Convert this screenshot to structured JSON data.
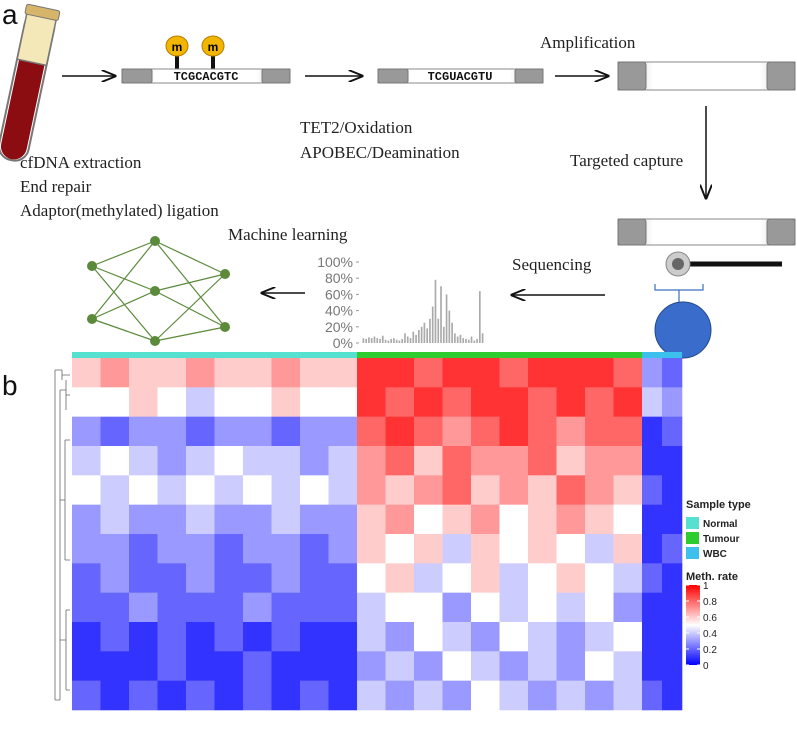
{
  "panel_a": {
    "label": "a",
    "sample_prep": [
      "cfDNA extraction",
      "End repair",
      "Adaptor(methylated) ligation"
    ],
    "methyl_marks": [
      "m",
      "m"
    ],
    "seq_before": "TCGCACGTC",
    "seq_after": "TCGUACGTU",
    "conversion": [
      "TET2/Oxidation",
      "APOBEC/Deamination"
    ],
    "amplification": "Amplification",
    "capture": "Targeted capture",
    "sequencing": "Sequencing",
    "machine_learning": "Machine learning"
  },
  "panel_b": {
    "label": "b"
  },
  "chart_data": [
    {
      "type": "bar",
      "color": "#aaaaaa",
      "values": [
        6,
        5,
        7,
        6,
        8,
        6,
        5,
        9,
        4,
        3,
        5,
        6,
        4,
        3,
        5,
        12,
        8,
        6,
        14,
        10,
        16,
        20,
        25,
        18,
        30,
        45,
        78,
        30,
        70,
        20,
        60,
        40,
        25,
        12,
        8,
        10,
        6,
        5,
        4,
        8,
        3,
        5,
        64,
        12
      ],
      "ylim": [
        0,
        100
      ],
      "yticks": [
        {
          "value": 0,
          "label": "0%"
        },
        {
          "value": 20,
          "label": "20%"
        },
        {
          "value": 40,
          "label": "40%"
        },
        {
          "value": 60,
          "label": "60%"
        },
        {
          "value": 80,
          "label": "80%"
        },
        {
          "value": 100,
          "label": "100%"
        }
      ]
    },
    {
      "type": "heatmap",
      "legend_title": "Sample type",
      "colorbar_title": "Meth. rate",
      "colormap": [
        "#0000ff",
        "#ffffff",
        "#ff0000"
      ],
      "zlim": [
        0,
        1
      ],
      "zticks": [
        0,
        0.2,
        0.4,
        0.6,
        0.8,
        1
      ],
      "series": [
        {
          "name": "Normal",
          "color": "#55e0d0",
          "values": [
            [
              0.6,
              0.7,
              0.6,
              0.6,
              0.7,
              0.6,
              0.6,
              0.7,
              0.6,
              0.6
            ],
            [
              0.5,
              0.5,
              0.6,
              0.5,
              0.4,
              0.5,
              0.5,
              0.6,
              0.5,
              0.5
            ],
            [
              0.3,
              0.2,
              0.3,
              0.3,
              0.2,
              0.3,
              0.3,
              0.2,
              0.3,
              0.3
            ],
            [
              0.4,
              0.5,
              0.4,
              0.3,
              0.4,
              0.5,
              0.4,
              0.4,
              0.3,
              0.4
            ],
            [
              0.5,
              0.4,
              0.5,
              0.4,
              0.5,
              0.4,
              0.5,
              0.4,
              0.5,
              0.4
            ],
            [
              0.3,
              0.4,
              0.3,
              0.3,
              0.4,
              0.3,
              0.3,
              0.4,
              0.3,
              0.3
            ],
            [
              0.3,
              0.3,
              0.2,
              0.3,
              0.3,
              0.2,
              0.3,
              0.3,
              0.2,
              0.3
            ],
            [
              0.2,
              0.3,
              0.2,
              0.2,
              0.3,
              0.2,
              0.2,
              0.3,
              0.2,
              0.2
            ],
            [
              0.2,
              0.2,
              0.3,
              0.2,
              0.2,
              0.2,
              0.3,
              0.2,
              0.2,
              0.2
            ],
            [
              0.1,
              0.2,
              0.1,
              0.2,
              0.1,
              0.2,
              0.1,
              0.2,
              0.1,
              0.1
            ],
            [
              0.1,
              0.1,
              0.1,
              0.2,
              0.1,
              0.1,
              0.2,
              0.1,
              0.1,
              0.1
            ],
            [
              0.2,
              0.1,
              0.2,
              0.1,
              0.2,
              0.1,
              0.2,
              0.1,
              0.2,
              0.1
            ]
          ]
        },
        {
          "name": "Tumour",
          "color": "#2ecc2e",
          "values": [
            [
              0.9,
              0.9,
              0.8,
              0.9,
              0.9,
              0.8,
              0.9,
              0.9,
              0.9,
              0.8
            ],
            [
              0.9,
              0.8,
              0.9,
              0.8,
              0.9,
              0.9,
              0.8,
              0.9,
              0.8,
              0.9
            ],
            [
              0.8,
              0.9,
              0.8,
              0.7,
              0.8,
              0.9,
              0.8,
              0.7,
              0.8,
              0.8
            ],
            [
              0.7,
              0.8,
              0.6,
              0.8,
              0.7,
              0.7,
              0.8,
              0.6,
              0.7,
              0.7
            ],
            [
              0.7,
              0.6,
              0.7,
              0.8,
              0.6,
              0.7,
              0.6,
              0.8,
              0.7,
              0.6
            ],
            [
              0.6,
              0.7,
              0.5,
              0.6,
              0.7,
              0.5,
              0.6,
              0.7,
              0.6,
              0.5
            ],
            [
              0.6,
              0.5,
              0.6,
              0.4,
              0.6,
              0.5,
              0.6,
              0.5,
              0.4,
              0.6
            ],
            [
              0.5,
              0.6,
              0.4,
              0.5,
              0.6,
              0.4,
              0.5,
              0.6,
              0.5,
              0.4
            ],
            [
              0.4,
              0.5,
              0.5,
              0.3,
              0.5,
              0.4,
              0.5,
              0.4,
              0.5,
              0.3
            ],
            [
              0.4,
              0.3,
              0.5,
              0.4,
              0.3,
              0.5,
              0.4,
              0.3,
              0.4,
              0.5
            ],
            [
              0.3,
              0.4,
              0.3,
              0.5,
              0.4,
              0.3,
              0.4,
              0.3,
              0.5,
              0.4
            ],
            [
              0.4,
              0.3,
              0.4,
              0.3,
              0.5,
              0.4,
              0.3,
              0.4,
              0.3,
              0.4
            ]
          ]
        },
        {
          "name": "WBC",
          "color": "#3ec0ee",
          "values": [
            [
              0.3,
              0.2
            ],
            [
              0.4,
              0.3
            ],
            [
              0.1,
              0.2
            ],
            [
              0.1,
              0.1
            ],
            [
              0.2,
              0.1
            ],
            [
              0.1,
              0.1
            ],
            [
              0.1,
              0.2
            ],
            [
              0.2,
              0.1
            ],
            [
              0.1,
              0.1
            ],
            [
              0.1,
              0.1
            ],
            [
              0.1,
              0.1
            ],
            [
              0.2,
              0.1
            ]
          ]
        }
      ]
    }
  ]
}
